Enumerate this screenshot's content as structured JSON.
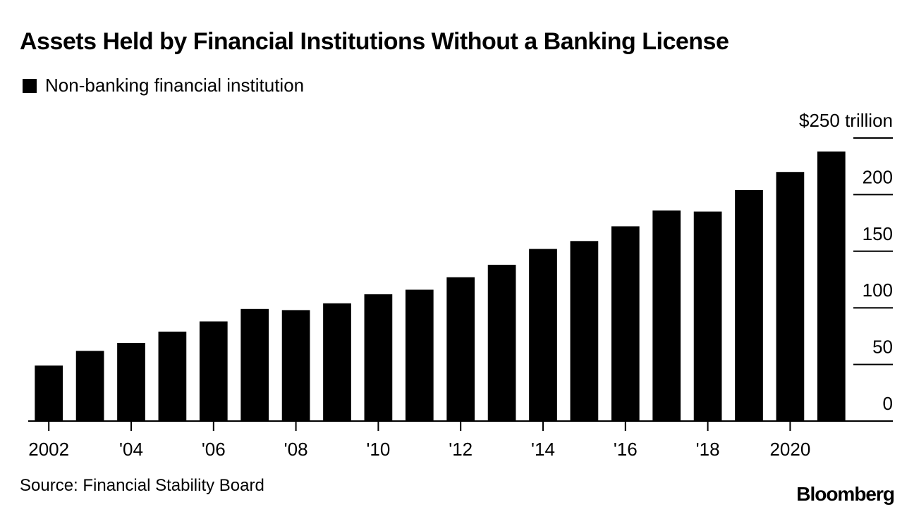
{
  "title": "Assets Held by Financial Institutions Without a Banking License",
  "legend": {
    "label": "Non-banking financial institution"
  },
  "source": "Source: Financial Stability Board",
  "brand": "Bloomberg",
  "colors": {
    "bar": "#000000",
    "background": "#ffffff"
  },
  "chart_data": {
    "type": "bar",
    "title": "Assets Held by Financial Institutions Without a Banking License",
    "series": [
      {
        "name": "Non-banking financial institution",
        "values": [
          49,
          62,
          69,
          79,
          88,
          99,
          98,
          104,
          112,
          116,
          127,
          138,
          152,
          159,
          172,
          186,
          185,
          204,
          220,
          238
        ]
      }
    ],
    "categories": [
      "2002",
      "2003",
      "2004",
      "2005",
      "2006",
      "2007",
      "2008",
      "2009",
      "2010",
      "2011",
      "2012",
      "2013",
      "2014",
      "2015",
      "2016",
      "2017",
      "2018",
      "2019",
      "2020",
      "2021"
    ],
    "x_tick_labels": [
      {
        "category": "2002",
        "label": "2002"
      },
      {
        "category": "2004",
        "label": "'04"
      },
      {
        "category": "2006",
        "label": "'06"
      },
      {
        "category": "2008",
        "label": "'08"
      },
      {
        "category": "2010",
        "label": "'10"
      },
      {
        "category": "2012",
        "label": "'12"
      },
      {
        "category": "2014",
        "label": "'14"
      },
      {
        "category": "2016",
        "label": "'16"
      },
      {
        "category": "2018",
        "label": "'18"
      },
      {
        "category": "2020",
        "label": "2020"
      }
    ],
    "y_ticks": [
      0,
      50,
      100,
      150,
      200,
      250
    ],
    "y_tick_labels": [
      "0",
      "50",
      "100",
      "150",
      "200",
      "$250 trillion"
    ],
    "ylim": [
      0,
      250
    ],
    "yaxis_side": "right",
    "xlabel": "",
    "ylabel": ""
  }
}
